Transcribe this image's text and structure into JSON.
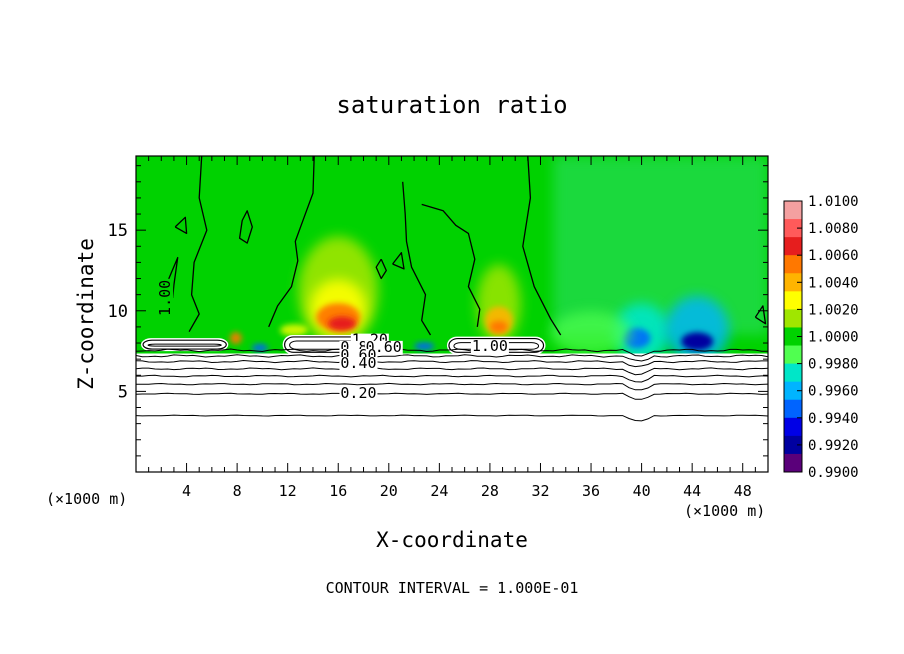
{
  "chart_data": {
    "type": "heatmap",
    "title": "saturation ratio",
    "xlabel": "X-coordinate",
    "ylabel": "Z-coordinate",
    "x_unit": "(×1000 m)",
    "y_unit": "(×1000 m)",
    "xlim": [
      0,
      50
    ],
    "ylim": [
      0,
      19.6
    ],
    "x_ticks": [
      4,
      8,
      12,
      16,
      20,
      24,
      28,
      32,
      36,
      40,
      44,
      48
    ],
    "y_ticks": [
      5,
      10,
      15
    ],
    "footer": "CONTOUR INTERVAL = 1.000E-01",
    "colorbar": {
      "min": 0.99,
      "max": 1.01,
      "labels": [
        "1.0100",
        "1.0080",
        "1.0060",
        "1.0040",
        "1.0020",
        "1.0000",
        "0.9980",
        "0.9960",
        "0.9940",
        "0.9920",
        "0.9900"
      ],
      "colors": [
        "#f4a0a0",
        "#ff5a5a",
        "#e61e1e",
        "#ff7800",
        "#ffb400",
        "#ffff00",
        "#a0e600",
        "#00d200",
        "#50ff50",
        "#00e6c8",
        "#00b4ff",
        "#0064ff",
        "#0000e6",
        "#0000a0",
        "#5a007a"
      ]
    },
    "contour_labels": [
      {
        "text": "1.20",
        "x": 18.5,
        "z": 7.9
      },
      {
        "text": "0.80",
        "x": 17.6,
        "z": 7.45
      },
      {
        "text": "0.60",
        "x": 19.6,
        "z": 7.45
      },
      {
        "text": "0.60",
        "x": 17.6,
        "z": 6.95
      },
      {
        "text": "0.40",
        "x": 17.6,
        "z": 6.45
      },
      {
        "text": "0.20",
        "x": 17.6,
        "z": 4.6
      },
      {
        "text": "1.00",
        "x": 28,
        "z": 7.5
      },
      {
        "text": "1.00",
        "x": 2.7,
        "z": 10.8
      }
    ],
    "contour_levels_z": [
      3.5,
      4.85,
      5.45,
      5.95,
      6.4,
      6.85,
      7.2,
      7.55
    ],
    "clouds": [
      {
        "x0": 0.4,
        "x1": 7.3,
        "z0": 7.5,
        "z1": 8.3
      },
      {
        "x0": 11.6,
        "x1": 19.2,
        "z0": 7.3,
        "z1": 8.5
      },
      {
        "x0": 24.6,
        "x1": 32.4,
        "z0": 7.3,
        "z1": 8.4
      }
    ],
    "hot_spots": [
      {
        "x": 16,
        "z": 10.3,
        "value": 1.007
      },
      {
        "x": 28.7,
        "z": 9.8,
        "value": 1.006
      },
      {
        "x": 44.3,
        "z": 8.2,
        "value": 0.992
      },
      {
        "x": 39.5,
        "z": 8.4,
        "value": 0.9945
      }
    ]
  }
}
